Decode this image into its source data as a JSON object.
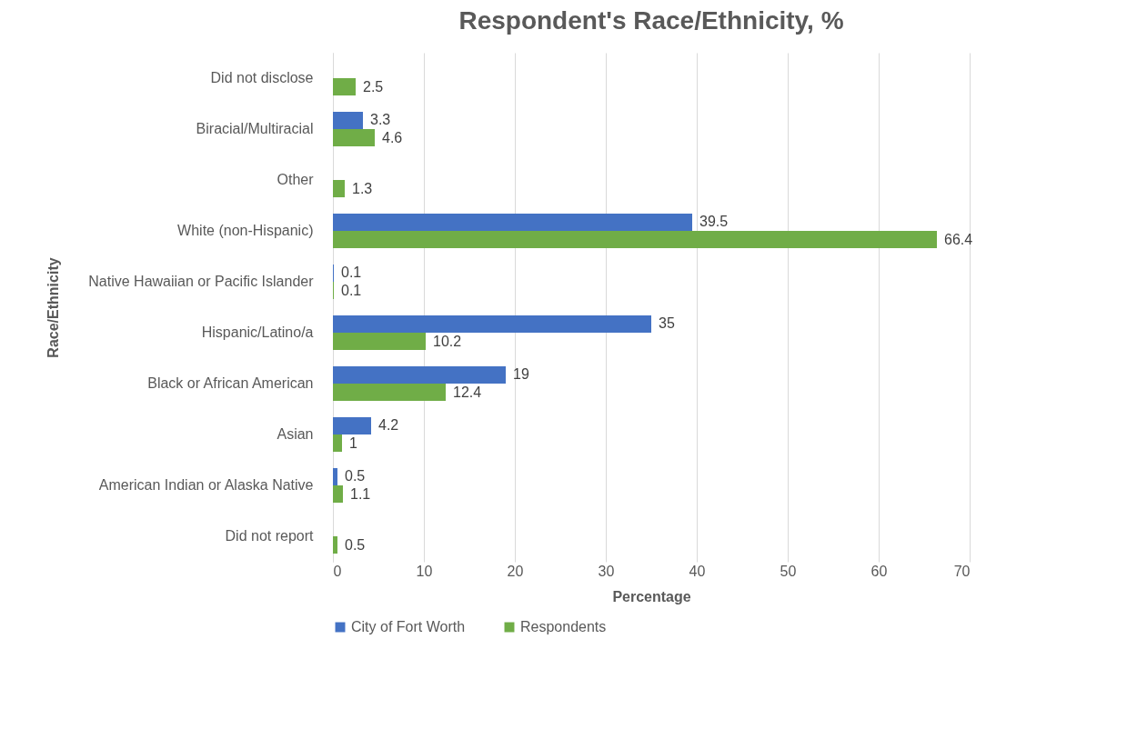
{
  "chart_data": {
    "type": "bar",
    "orientation": "horizontal",
    "title": "Respondent's Race/Ethnicity, %",
    "xlabel": "Percentage",
    "ylabel": "Race/Ethnicity",
    "categories": [
      "Did not disclose",
      "Biracial/Multiracial",
      "Other",
      "White (non-Hispanic)",
      "Native Hawaiian or Pacific Islander",
      "Hispanic/Latino/a",
      "Black or African American",
      "Asian",
      "American Indian or Alaska Native",
      "Did not report"
    ],
    "series": [
      {
        "name": "City of Fort Worth",
        "color": "#4472c4",
        "values": [
          null,
          3.3,
          null,
          39.5,
          0.1,
          35,
          19,
          4.2,
          0.5,
          null
        ]
      },
      {
        "name": "Respondents",
        "color": "#70ad47",
        "values": [
          2.5,
          4.6,
          1.3,
          66.4,
          0.1,
          10.2,
          12.4,
          1,
          1.1,
          0.5
        ]
      }
    ],
    "xlim": [
      0,
      70
    ],
    "xticks": [
      0,
      10,
      20,
      30,
      40,
      50,
      60,
      70
    ],
    "grid": "x",
    "legend": "bottom",
    "data_labels": true
  }
}
